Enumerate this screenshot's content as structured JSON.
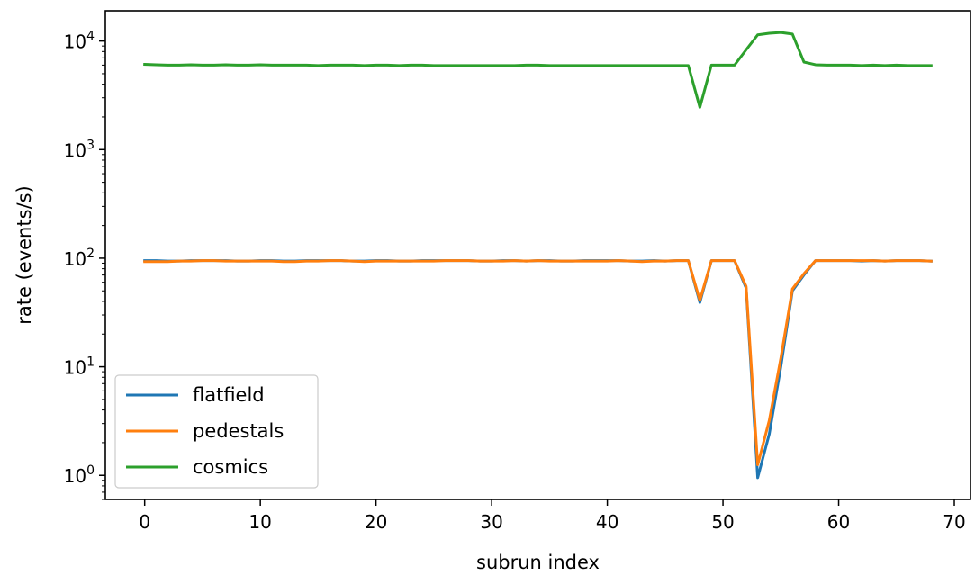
{
  "chart_data": {
    "type": "line",
    "title": "",
    "xlabel": "subrun index",
    "ylabel": "rate (events/s)",
    "xlim": [
      -3.4,
      71.4
    ],
    "ylim": [
      0.6,
      19000
    ],
    "yscale": "log",
    "grid": false,
    "legend_position": "lower-left",
    "x_ticks": [
      0,
      10,
      20,
      30,
      40,
      50,
      60,
      70
    ],
    "x_tick_labels": [
      "0",
      "10",
      "20",
      "30",
      "40",
      "50",
      "60",
      "70"
    ],
    "y_ticks": [
      1,
      10,
      100,
      1000,
      10000
    ],
    "y_tick_labels": [
      {
        "base": "10",
        "exp": "0"
      },
      {
        "base": "10",
        "exp": "1"
      },
      {
        "base": "10",
        "exp": "2"
      },
      {
        "base": "10",
        "exp": "3"
      },
      {
        "base": "10",
        "exp": "4"
      }
    ],
    "x": [
      0,
      1,
      2,
      3,
      4,
      5,
      6,
      7,
      8,
      9,
      10,
      11,
      12,
      13,
      14,
      15,
      16,
      17,
      18,
      19,
      20,
      21,
      22,
      23,
      24,
      25,
      26,
      27,
      28,
      29,
      30,
      31,
      32,
      33,
      34,
      35,
      36,
      37,
      38,
      39,
      40,
      41,
      42,
      43,
      44,
      45,
      46,
      47,
      48,
      49,
      50,
      51,
      52,
      53,
      54,
      55,
      56,
      57,
      58,
      59,
      60,
      61,
      62,
      63,
      64,
      65,
      66,
      67,
      68
    ],
    "series": [
      {
        "name": "flatfield",
        "color": "#1f77b4",
        "values": [
          95,
          95,
          94,
          94,
          95,
          95,
          95,
          95,
          94,
          94,
          95,
          95,
          94,
          94,
          95,
          95,
          95,
          95,
          94,
          94,
          95,
          95,
          94,
          94,
          95,
          95,
          95,
          95,
          95,
          94,
          94,
          95,
          95,
          94,
          95,
          95,
          94,
          94,
          95,
          95,
          95,
          95,
          94,
          94,
          95,
          94,
          95,
          95,
          39,
          95,
          95,
          95,
          53,
          0.95,
          2.4,
          10,
          50,
          70,
          95,
          95,
          95,
          95,
          94,
          95,
          94,
          95,
          95,
          95,
          94
        ]
      },
      {
        "name": "pedestals",
        "color": "#ff7f0e",
        "values": [
          93,
          93,
          93,
          94,
          94,
          95,
          95,
          94,
          94,
          94,
          94,
          94,
          93,
          93,
          94,
          94,
          95,
          95,
          94,
          93,
          94,
          94,
          94,
          94,
          94,
          94,
          95,
          95,
          95,
          94,
          94,
          94,
          95,
          94,
          95,
          94,
          94,
          94,
          94,
          94,
          94,
          95,
          94,
          93,
          94,
          94,
          95,
          95,
          41,
          95,
          95,
          95,
          55,
          1.25,
          3.2,
          12,
          52,
          72,
          95,
          95,
          95,
          95,
          95,
          95,
          94,
          95,
          95,
          95,
          94
        ]
      },
      {
        "name": "cosmics",
        "color": "#2ca02c",
        "values": [
          6100,
          6050,
          6000,
          6000,
          6050,
          6000,
          6000,
          6050,
          6000,
          6000,
          6050,
          6000,
          6000,
          6000,
          6000,
          5950,
          6000,
          6000,
          6000,
          5950,
          6000,
          6000,
          5950,
          6000,
          6000,
          5950,
          5950,
          5950,
          5950,
          5950,
          5950,
          5950,
          5950,
          6000,
          6000,
          5950,
          5950,
          5950,
          5950,
          5950,
          5950,
          5950,
          5950,
          5950,
          5950,
          5950,
          5950,
          5950,
          2450,
          6000,
          6000,
          6000,
          8300,
          11400,
          11800,
          12000,
          11600,
          6400,
          6050,
          6000,
          6000,
          6000,
          5950,
          6000,
          5950,
          6000,
          5950,
          5950,
          5950
        ]
      }
    ]
  }
}
